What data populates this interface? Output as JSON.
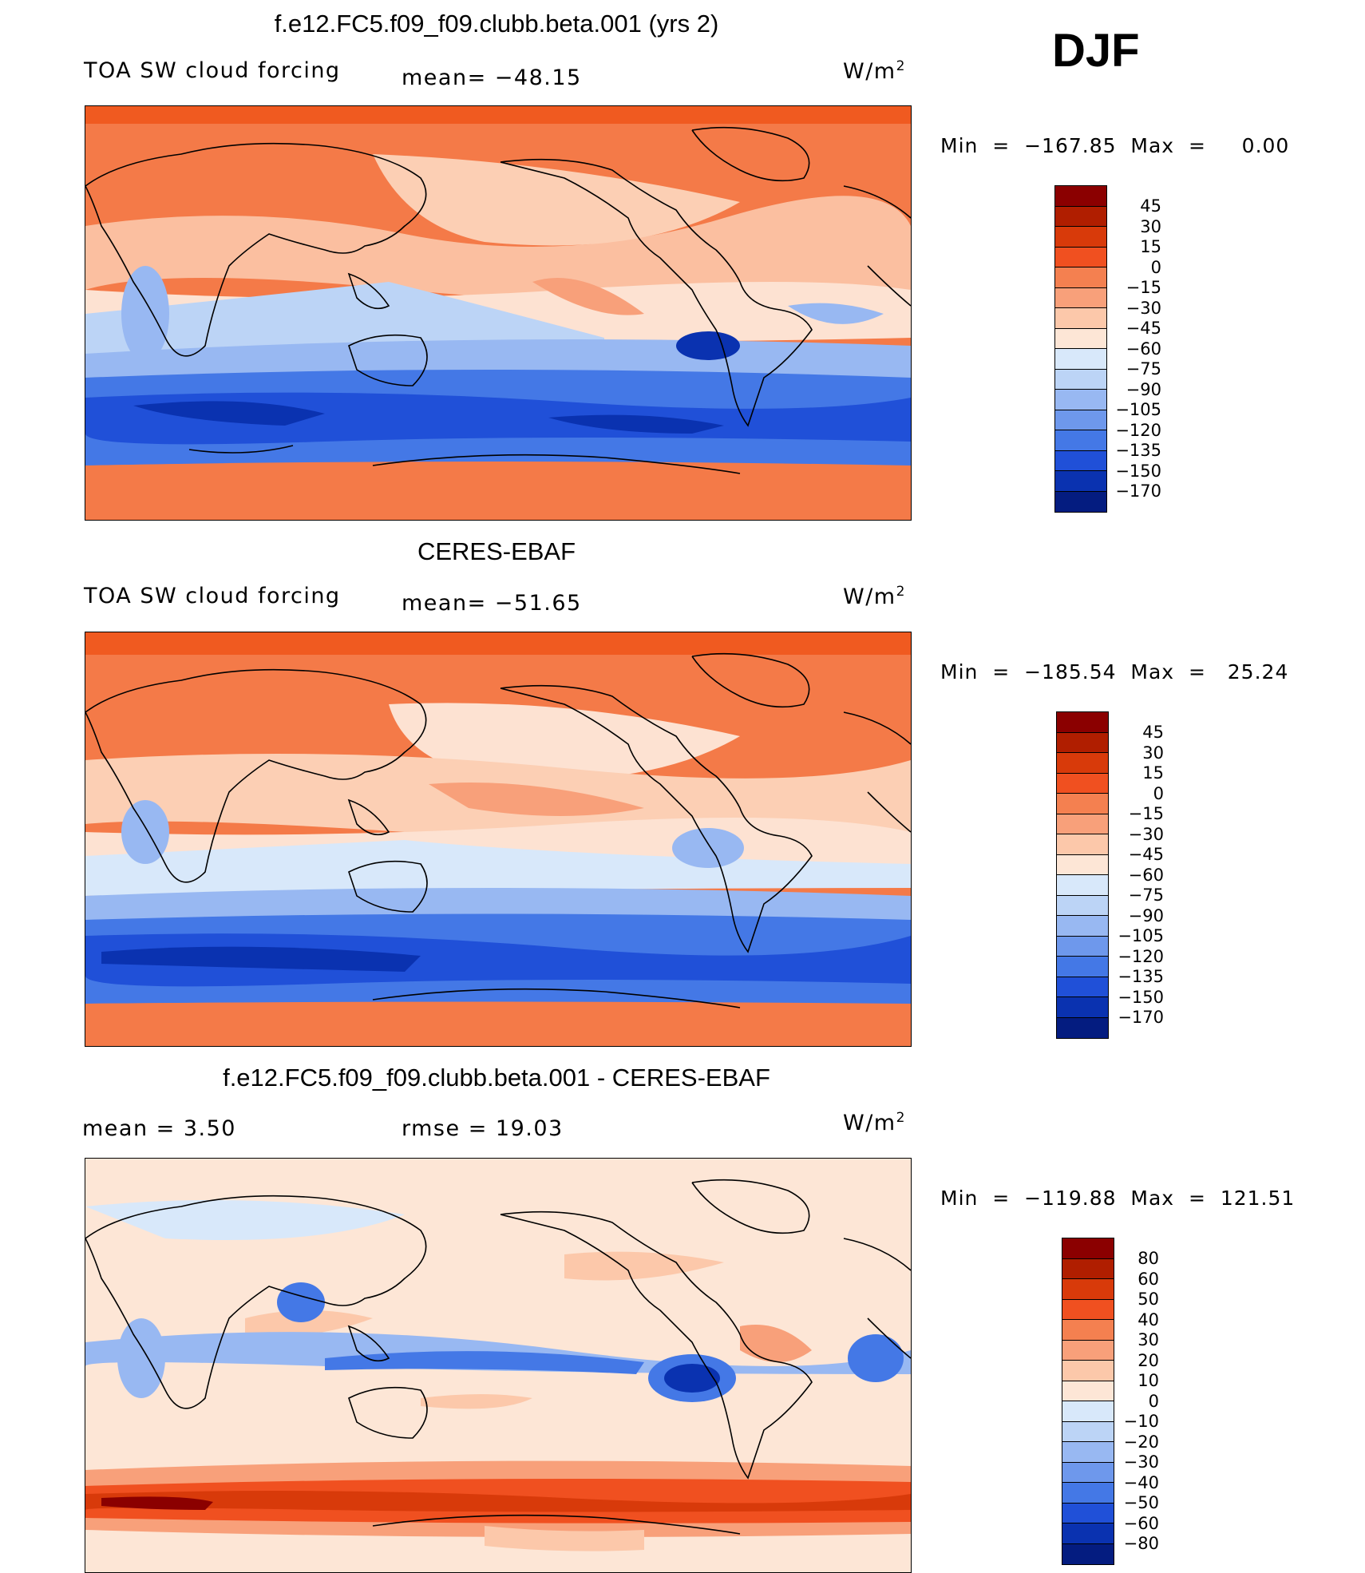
{
  "season": "DJF",
  "colors": {
    "warm": [
      "#8b0000",
      "#b01e00",
      "#d83a0a",
      "#f05020",
      "#f48050",
      "#f8a07a",
      "#fcc8aa",
      "#fde6d6"
    ],
    "cool": [
      "#d8e8fa",
      "#bcd4f6",
      "#98b8f2",
      "#6e98ec",
      "#4478e6",
      "#2050d8",
      "#0a32b0",
      "#041c80"
    ]
  },
  "panels": [
    {
      "title": "f.e12.FC5.f09_f09.clubb.beta.001 (yrs 2)",
      "left_label": "TOA SW cloud forcing",
      "mid_label": "mean= −48.15",
      "units": "W/m",
      "units_sup": "2",
      "minmax": "Min  =  −167.85  Max  =     0.00",
      "levels": [
        "45",
        "30",
        "15",
        "0",
        "−15",
        "−30",
        "−45",
        "−60",
        "−75",
        "−90",
        "−105",
        "−120",
        "−135",
        "−150",
        "−170"
      ]
    },
    {
      "title": "CERES-EBAF",
      "left_label": "TOA SW cloud forcing",
      "mid_label": "mean= −51.65",
      "units": "W/m",
      "units_sup": "2",
      "minmax": "Min  =  −185.54  Max  =   25.24",
      "levels": [
        "45",
        "30",
        "15",
        "0",
        "−15",
        "−30",
        "−45",
        "−60",
        "−75",
        "−90",
        "−105",
        "−120",
        "−135",
        "−150",
        "−170"
      ]
    },
    {
      "title": "f.e12.FC5.f09_f09.clubb.beta.001 - CERES-EBAF",
      "left_label": "mean  =    3.50",
      "mid_label": "rmse  =   19.03",
      "units": "W/m",
      "units_sup": "2",
      "minmax": "Min  =  −119.88  Max  =  121.51",
      "levels": [
        "80",
        "60",
        "50",
        "40",
        "30",
        "20",
        "10",
        "0",
        "−10",
        "−20",
        "−30",
        "−40",
        "−50",
        "−60",
        "−80"
      ]
    }
  ]
}
